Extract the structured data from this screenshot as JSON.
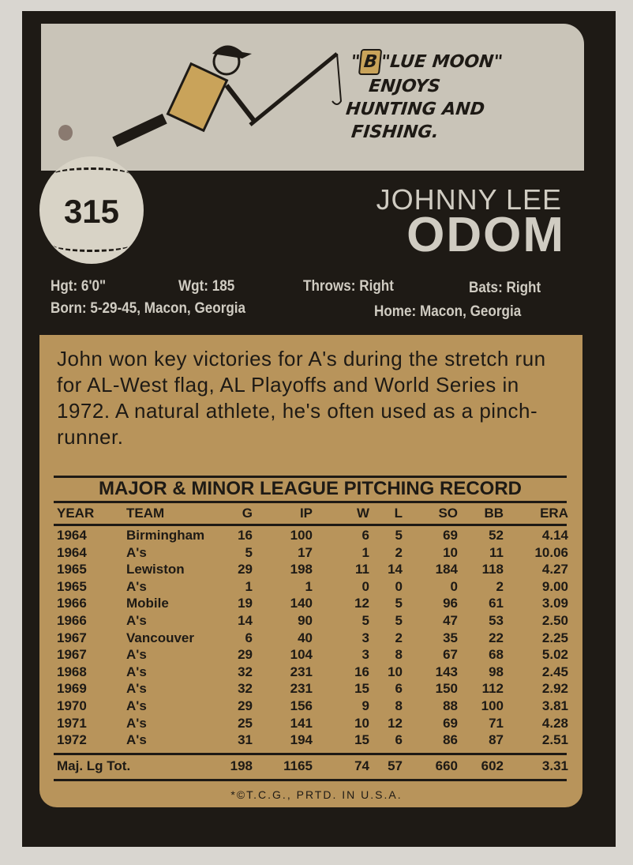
{
  "card_number": "315",
  "cartoon": {
    "quote_initial": "B",
    "quote_lines": [
      "\"LUE MOON\"",
      "ENJOYS",
      "HUNTING AND",
      "FISHING."
    ]
  },
  "player": {
    "first_names": "JOHNNY LEE",
    "last_name": "ODOM"
  },
  "bio": {
    "height": "Hgt: 6'0\"",
    "weight": "Wgt: 185",
    "throws": "Throws: Right",
    "bats": "Bats: Right",
    "born": "Born: 5-29-45, Macon, Georgia",
    "home": "Home: Macon, Georgia"
  },
  "blurb": "John won key victories for A's during the stretch run for AL-West flag, AL Playoffs and World Series in 1972. A natural athlete, he's often used as a pinch-runner.",
  "record": {
    "title": "MAJOR & MINOR LEAGUE PITCHING RECORD",
    "headers": [
      "YEAR",
      "TEAM",
      "G",
      "IP",
      "W",
      "L",
      "SO",
      "BB",
      "ERA"
    ],
    "rows": [
      [
        "1964",
        "Birmingham",
        "16",
        "100",
        "6",
        "5",
        "69",
        "52",
        "4.14"
      ],
      [
        "1964",
        "A's",
        "5",
        "17",
        "1",
        "2",
        "10",
        "11",
        "10.06"
      ],
      [
        "1965",
        "Lewiston",
        "29",
        "198",
        "11",
        "14",
        "184",
        "118",
        "4.27"
      ],
      [
        "1965",
        "A's",
        "1",
        "1",
        "0",
        "0",
        "0",
        "2",
        "9.00"
      ],
      [
        "1966",
        "Mobile",
        "19",
        "140",
        "12",
        "5",
        "96",
        "61",
        "3.09"
      ],
      [
        "1966",
        "A's",
        "14",
        "90",
        "5",
        "5",
        "47",
        "53",
        "2.50"
      ],
      [
        "1967",
        "Vancouver",
        "6",
        "40",
        "3",
        "2",
        "35",
        "22",
        "2.25"
      ],
      [
        "1967",
        "A's",
        "29",
        "104",
        "3",
        "8",
        "67",
        "68",
        "5.02"
      ],
      [
        "1968",
        "A's",
        "32",
        "231",
        "16",
        "10",
        "143",
        "98",
        "2.45"
      ],
      [
        "1969",
        "A's",
        "32",
        "231",
        "15",
        "6",
        "150",
        "112",
        "2.92"
      ],
      [
        "1970",
        "A's",
        "29",
        "156",
        "9",
        "8",
        "88",
        "100",
        "3.81"
      ],
      [
        "1971",
        "A's",
        "25",
        "141",
        "10",
        "12",
        "69",
        "71",
        "4.28"
      ],
      [
        "1972",
        "A's",
        "31",
        "194",
        "15",
        "6",
        "86",
        "87",
        "2.51"
      ]
    ],
    "totals": [
      "Maj. Lg Tot.",
      "198",
      "1165",
      "74",
      "57",
      "660",
      "602",
      "3.31"
    ]
  },
  "footer": "*©T.C.G., PRTD. IN U.S.A.",
  "colors": {
    "card": "#1e1a15",
    "panel": "#c9c4b8",
    "tan": "#b8945b"
  }
}
